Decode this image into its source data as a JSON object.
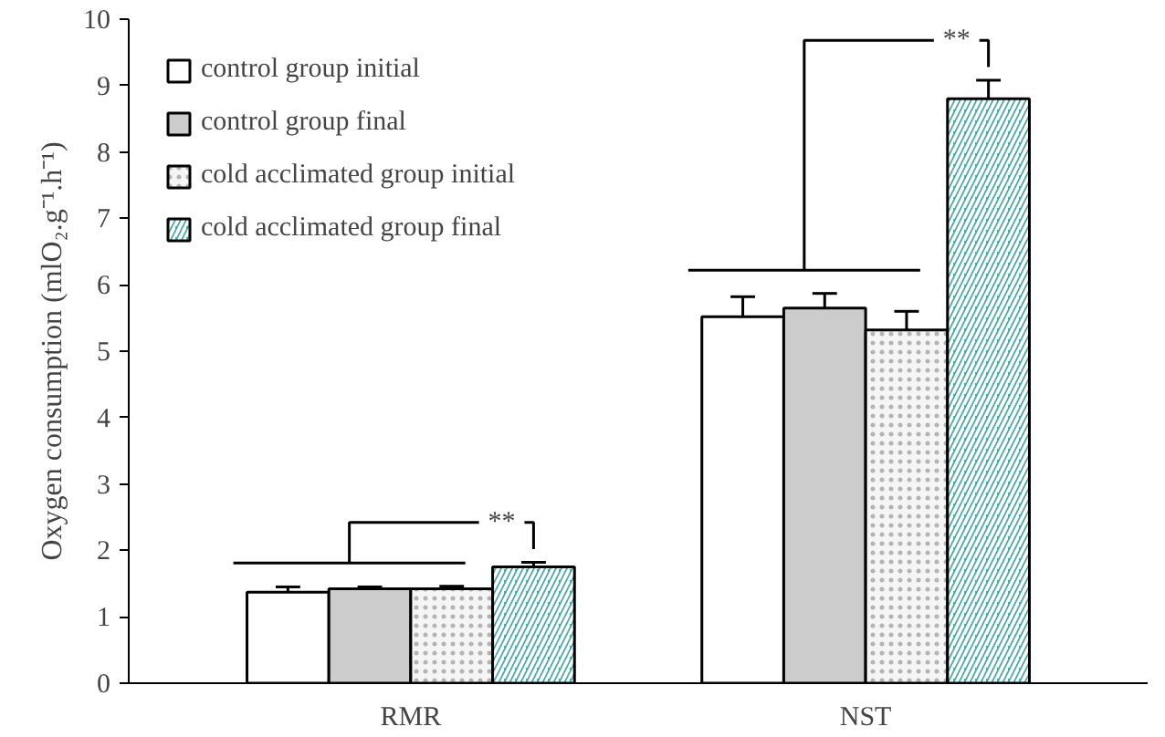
{
  "chart_data": {
    "type": "bar",
    "ylabel": "Oxygen consumption (mlO₂.g⁻¹.h⁻¹)",
    "categories": [
      "RMR",
      "NST"
    ],
    "series": [
      {
        "name": "control group initial",
        "color": "#ffffff",
        "values": [
          1.37,
          5.52
        ],
        "errors": [
          0.08,
          0.3
        ]
      },
      {
        "name": "control group final",
        "color": "#cccccc",
        "values": [
          1.42,
          5.65
        ],
        "errors": [
          0.03,
          0.22
        ]
      },
      {
        "name": "cold acclimated group initial",
        "color": "#f5f5f5",
        "values": [
          1.42,
          5.32
        ],
        "errors": [
          0.04,
          0.28
        ]
      },
      {
        "name": "cold acclimated group final",
        "color": "#4fa8a8",
        "values": [
          1.75,
          8.8
        ],
        "errors": [
          0.07,
          0.28
        ]
      }
    ],
    "annotations": [
      "**",
      "**"
    ],
    "ylim": [
      0,
      10
    ],
    "yticks": [
      0,
      1,
      2,
      3,
      4,
      5,
      6,
      7,
      8,
      9,
      10
    ],
    "grid": false,
    "legend": "top left"
  }
}
